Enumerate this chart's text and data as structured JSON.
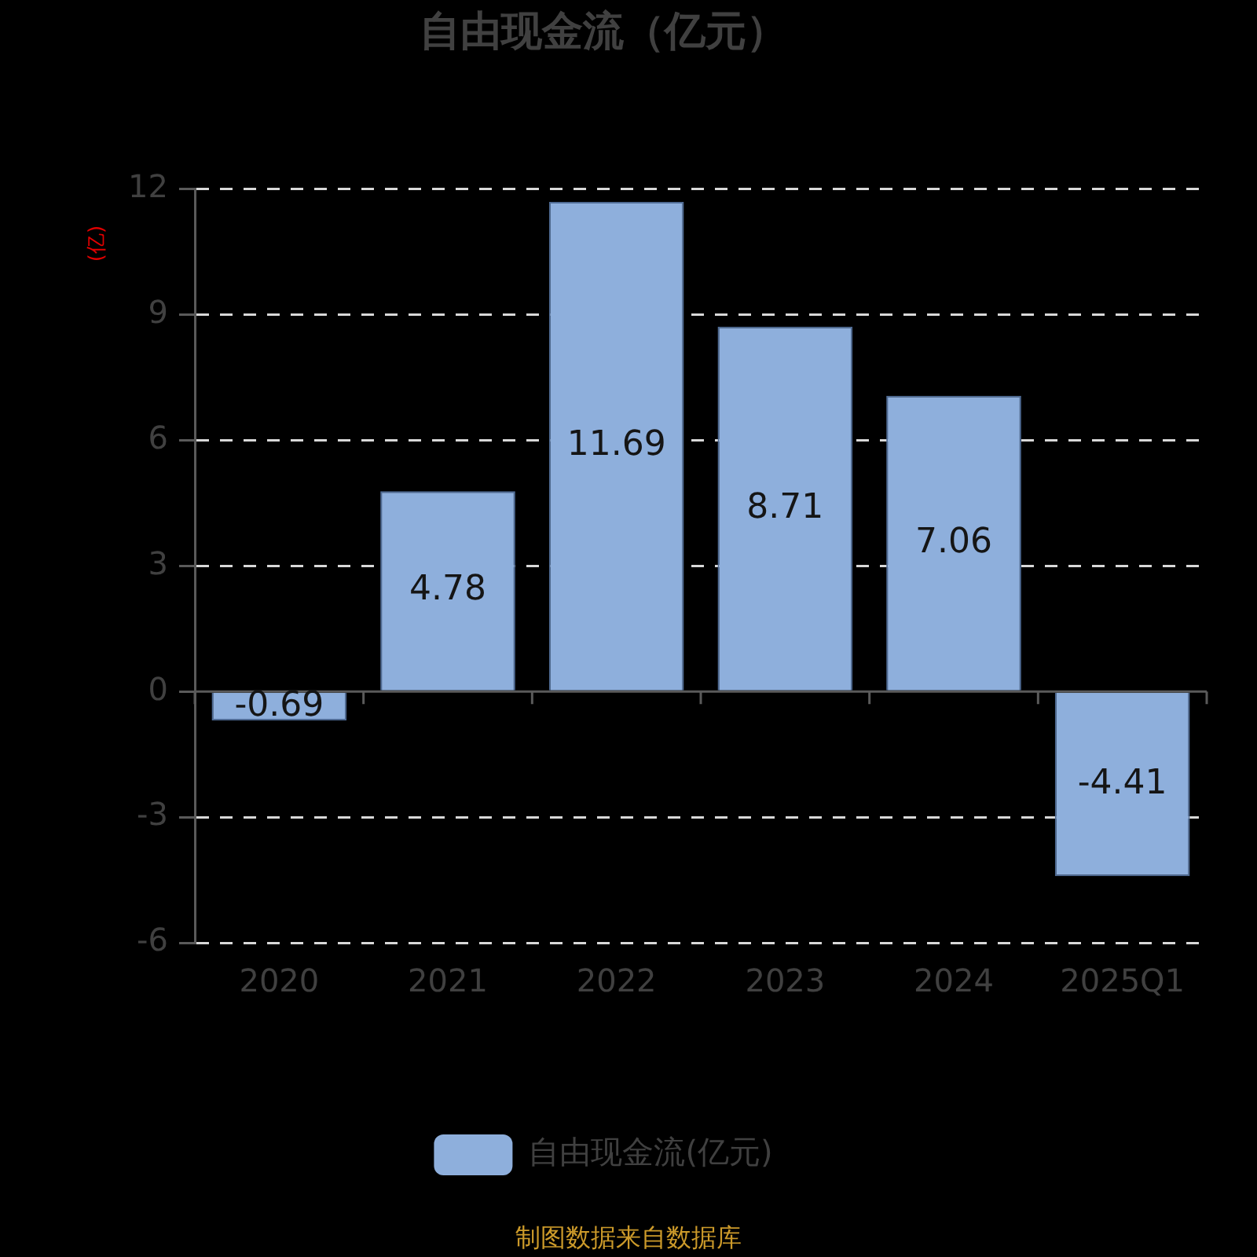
{
  "chart_data": {
    "type": "bar",
    "title": "自由现金流（亿元）",
    "ylabel": "(亿)",
    "categories": [
      "2020",
      "2021",
      "2022",
      "2023",
      "2024",
      "2025Q1"
    ],
    "series": [
      {
        "name": "自由现金流(亿元)",
        "color": "#8eafdc",
        "values": [
          -0.69,
          4.78,
          11.69,
          8.71,
          7.06,
          -4.41
        ]
      }
    ],
    "ylim": [
      -6,
      12
    ],
    "yticks": [
      -6,
      -3,
      0,
      3,
      6,
      9,
      12
    ],
    "grid": "y",
    "legend": "bottom",
    "data_labels": true,
    "annotations": [
      "制图数据来自数据库"
    ]
  }
}
